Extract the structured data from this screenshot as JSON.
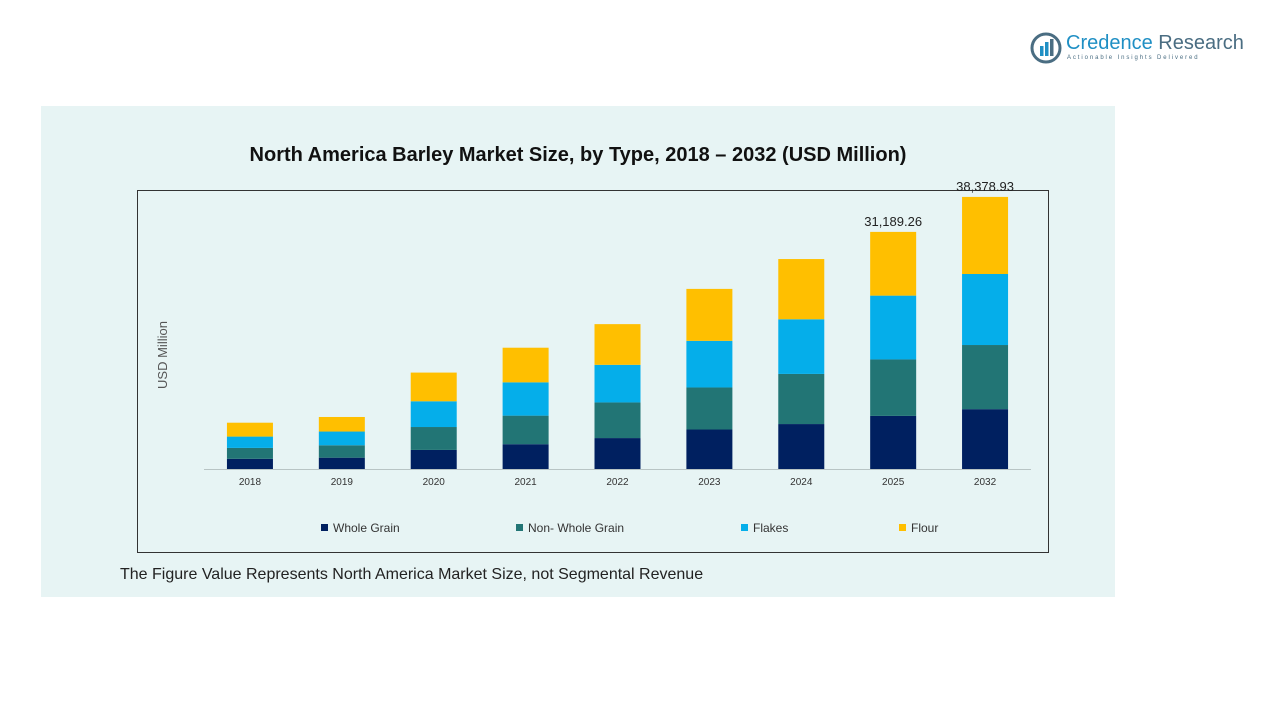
{
  "brand": {
    "name_part1": "Credence",
    "name_part2": " Research",
    "tagline": "Actionable Insights Delivered"
  },
  "footnote": "The Figure Value Represents North America Market Size, not Segmental Revenue",
  "colors": {
    "panel_bg": "#e7f4f4",
    "brand_blue": "#1f8fc4"
  },
  "chart_data": {
    "type": "bar",
    "stacked": true,
    "title": "North America Barley Market Size, by Type, 2018 – 2032 (USD Million)",
    "xlabel": "",
    "ylabel": "USD Million",
    "categories": [
      "2018",
      "2019",
      "2020",
      "2021",
      "2022",
      "2023",
      "2024",
      "2025",
      "2032"
    ],
    "ylim": [
      0,
      42000
    ],
    "grid": false,
    "legend_position": "bottom",
    "series": [
      {
        "name": "Whole Grain",
        "color": "#002060",
        "values": [
          1510,
          1680,
          2830,
          3680,
          4590,
          5860,
          6670,
          7880,
          8880
        ]
      },
      {
        "name": "Non- Whole Grain",
        "color": "#227575",
        "values": [
          1620,
          1840,
          3400,
          4240,
          5290,
          6240,
          7440,
          8380,
          9520
        ]
      },
      {
        "name": "Flakes",
        "color": "#05aeea",
        "values": [
          1680,
          2040,
          3820,
          4940,
          5580,
          6920,
          8110,
          9470,
          10540
        ]
      },
      {
        "name": "Flour",
        "color": "#ffbf00",
        "values": [
          2060,
          2160,
          4260,
          5140,
          6040,
          7710,
          8940,
          9459.26,
          11438.93
        ]
      }
    ],
    "total_labels": [
      {
        "category": "2025",
        "text": "31,189.26"
      },
      {
        "category": "2032",
        "text": "38,378.93"
      }
    ]
  }
}
